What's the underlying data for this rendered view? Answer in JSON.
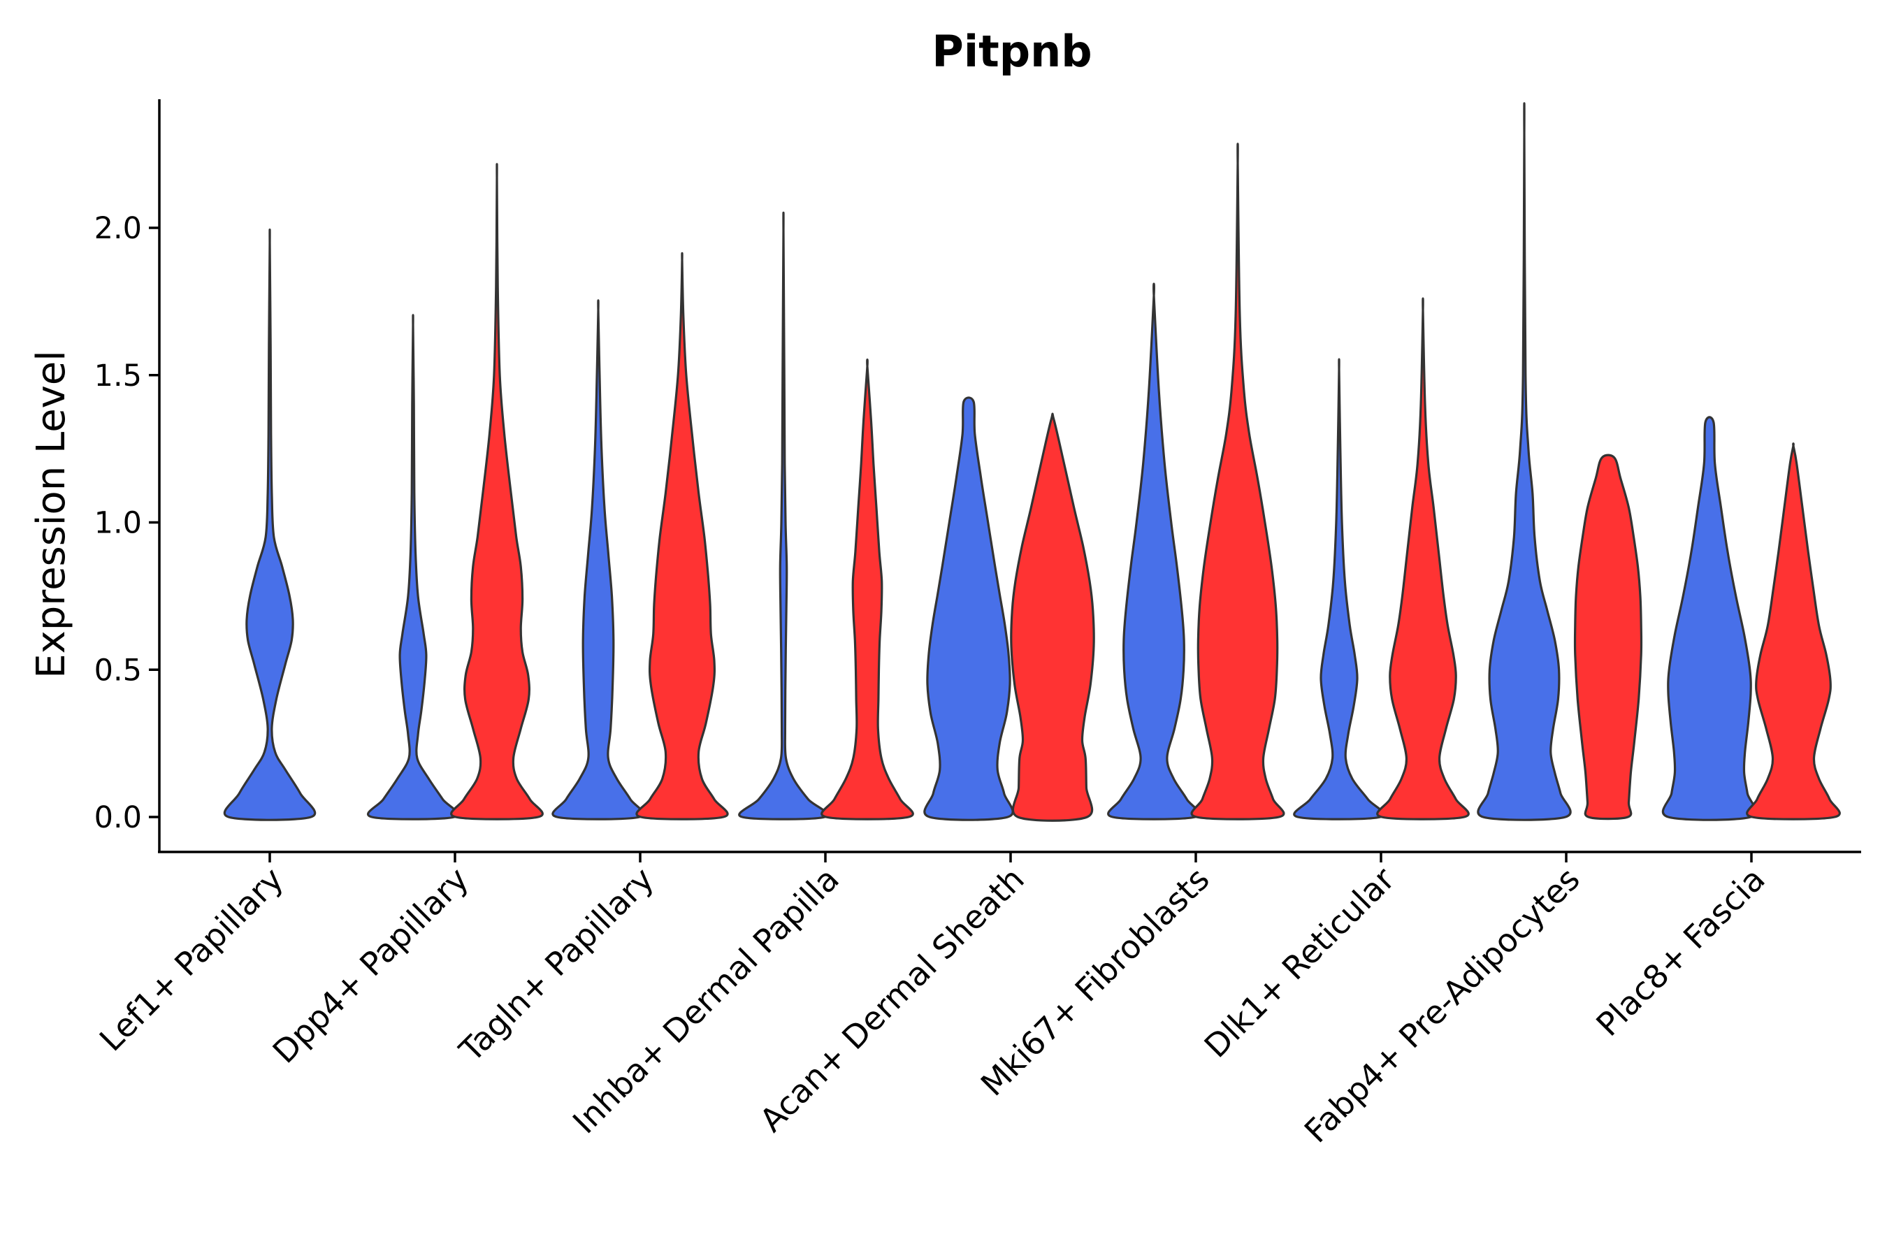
{
  "chart_data": {
    "type": "violin",
    "title": "Pitpnb",
    "xlabel": "",
    "ylabel": "Expression Level",
    "ylim": [
      -0.12,
      2.42
    ],
    "yticks": [
      0.0,
      0.5,
      1.0,
      1.5,
      2.0
    ],
    "ytick_labels": [
      "0.0",
      "0.5",
      "1.0",
      "1.5",
      "2.0"
    ],
    "grid": false,
    "legend": "none",
    "colors": {
      "group_a": "#4870E9",
      "group_b": "#FF3333",
      "outline": "#333333"
    },
    "categories": [
      "Lef1+ Papillary",
      "Dpp4+ Papillary",
      "Tagln+ Papillary",
      "Inhba+ Dermal Papilla",
      "Acan+ Dermal Sheath",
      "Mki67+ Fibroblasts",
      "Dlk1+ Reticular",
      "Fabp4+ Pre-Adipocytes",
      "Plac8+ Fascia"
    ],
    "series": [
      {
        "name": "group_a",
        "color": "#4870E9",
        "max_values": [
          1.95,
          1.67,
          1.72,
          1.99,
          1.41,
          1.77,
          1.52,
          2.32,
          1.34
        ],
        "profiles": [
          [
            [
              0,
              1.0
            ],
            [
              0.08,
              0.74
            ],
            [
              0.16,
              0.38
            ],
            [
              0.22,
              0.13
            ],
            [
              0.3,
              0.05
            ],
            [
              0.4,
              0.16
            ],
            [
              0.52,
              0.38
            ],
            [
              0.6,
              0.53
            ],
            [
              0.67,
              0.56
            ],
            [
              0.75,
              0.48
            ],
            [
              0.85,
              0.3
            ],
            [
              0.95,
              0.1
            ],
            [
              1.1,
              0.05
            ],
            [
              1.3,
              0.03
            ],
            [
              1.6,
              0.02
            ],
            [
              1.95,
              0.0
            ]
          ],
          [
            [
              0,
              1.0
            ],
            [
              0.06,
              0.72
            ],
            [
              0.13,
              0.38
            ],
            [
              0.2,
              0.1
            ],
            [
              0.28,
              0.12
            ],
            [
              0.36,
              0.2
            ],
            [
              0.46,
              0.28
            ],
            [
              0.55,
              0.32
            ],
            [
              0.62,
              0.26
            ],
            [
              0.75,
              0.12
            ],
            [
              0.9,
              0.06
            ],
            [
              1.1,
              0.03
            ],
            [
              1.4,
              0.02
            ],
            [
              1.67,
              0.0
            ]
          ],
          [
            [
              0,
              1.0
            ],
            [
              0.06,
              0.78
            ],
            [
              0.13,
              0.45
            ],
            [
              0.2,
              0.24
            ],
            [
              0.3,
              0.3
            ],
            [
              0.45,
              0.35
            ],
            [
              0.6,
              0.37
            ],
            [
              0.75,
              0.33
            ],
            [
              0.9,
              0.24
            ],
            [
              1.05,
              0.15
            ],
            [
              1.25,
              0.08
            ],
            [
              1.45,
              0.04
            ],
            [
              1.72,
              0.0
            ]
          ],
          [
            [
              0,
              1.0
            ],
            [
              0.06,
              0.6
            ],
            [
              0.13,
              0.24
            ],
            [
              0.2,
              0.06
            ],
            [
              0.3,
              0.04
            ],
            [
              0.5,
              0.05
            ],
            [
              0.7,
              0.07
            ],
            [
              0.85,
              0.08
            ],
            [
              1.0,
              0.05
            ],
            [
              1.2,
              0.03
            ],
            [
              1.5,
              0.02
            ],
            [
              1.99,
              0.0
            ]
          ],
          [
            [
              0,
              0.95
            ],
            [
              0.08,
              0.86
            ],
            [
              0.16,
              0.7
            ],
            [
              0.25,
              0.75
            ],
            [
              0.35,
              0.92
            ],
            [
              0.45,
              1.0
            ],
            [
              0.55,
              0.97
            ],
            [
              0.65,
              0.88
            ],
            [
              0.75,
              0.76
            ],
            [
              0.85,
              0.64
            ],
            [
              1.0,
              0.47
            ],
            [
              1.15,
              0.3
            ],
            [
              1.3,
              0.15
            ],
            [
              1.41,
              0.12
            ]
          ],
          [
            [
              0,
              1.0
            ],
            [
              0.06,
              0.8
            ],
            [
              0.13,
              0.48
            ],
            [
              0.2,
              0.32
            ],
            [
              0.3,
              0.5
            ],
            [
              0.4,
              0.65
            ],
            [
              0.5,
              0.72
            ],
            [
              0.6,
              0.73
            ],
            [
              0.7,
              0.68
            ],
            [
              0.85,
              0.56
            ],
            [
              1.0,
              0.42
            ],
            [
              1.2,
              0.26
            ],
            [
              1.45,
              0.12
            ],
            [
              1.77,
              0.0
            ]
          ],
          [
            [
              0,
              1.0
            ],
            [
              0.06,
              0.7
            ],
            [
              0.13,
              0.32
            ],
            [
              0.2,
              0.16
            ],
            [
              0.28,
              0.22
            ],
            [
              0.38,
              0.36
            ],
            [
              0.47,
              0.44
            ],
            [
              0.55,
              0.38
            ],
            [
              0.65,
              0.26
            ],
            [
              0.8,
              0.14
            ],
            [
              1.0,
              0.07
            ],
            [
              1.25,
              0.03
            ],
            [
              1.52,
              0.0
            ]
          ],
          [
            [
              0,
              1.0
            ],
            [
              0.08,
              0.88
            ],
            [
              0.15,
              0.74
            ],
            [
              0.22,
              0.64
            ],
            [
              0.3,
              0.7
            ],
            [
              0.4,
              0.82
            ],
            [
              0.5,
              0.84
            ],
            [
              0.6,
              0.74
            ],
            [
              0.7,
              0.56
            ],
            [
              0.8,
              0.38
            ],
            [
              0.95,
              0.25
            ],
            [
              1.1,
              0.2
            ],
            [
              1.25,
              0.1
            ],
            [
              1.5,
              0.03
            ],
            [
              2.32,
              0.0
            ]
          ],
          [
            [
              0,
              1.0
            ],
            [
              0.08,
              0.92
            ],
            [
              0.15,
              0.84
            ],
            [
              0.22,
              0.86
            ],
            [
              0.32,
              0.94
            ],
            [
              0.42,
              1.0
            ],
            [
              0.5,
              0.98
            ],
            [
              0.62,
              0.84
            ],
            [
              0.75,
              0.64
            ],
            [
              0.9,
              0.44
            ],
            [
              1.05,
              0.28
            ],
            [
              1.2,
              0.13
            ],
            [
              1.34,
              0.1
            ]
          ]
        ]
      },
      {
        "name": "group_b",
        "color": "#FF3333",
        "max_values": [
          2.17,
          1.89,
          1.53,
          1.35,
          2.22,
          1.72,
          1.22,
          1.26
        ],
        "profiles": [
          [
            [
              0,
              1.0
            ],
            [
              0.06,
              0.8
            ],
            [
              0.13,
              0.48
            ],
            [
              0.2,
              0.4
            ],
            [
              0.3,
              0.58
            ],
            [
              0.4,
              0.77
            ],
            [
              0.48,
              0.76
            ],
            [
              0.56,
              0.62
            ],
            [
              0.64,
              0.58
            ],
            [
              0.74,
              0.62
            ],
            [
              0.85,
              0.58
            ],
            [
              0.95,
              0.47
            ],
            [
              1.1,
              0.34
            ],
            [
              1.3,
              0.18
            ],
            [
              1.5,
              0.07
            ],
            [
              1.8,
              0.02
            ],
            [
              2.17,
              0.0
            ]
          ],
          [
            [
              0,
              1.0
            ],
            [
              0.06,
              0.78
            ],
            [
              0.13,
              0.48
            ],
            [
              0.22,
              0.4
            ],
            [
              0.32,
              0.58
            ],
            [
              0.45,
              0.76
            ],
            [
              0.53,
              0.78
            ],
            [
              0.62,
              0.7
            ],
            [
              0.72,
              0.68
            ],
            [
              0.82,
              0.63
            ],
            [
              0.95,
              0.54
            ],
            [
              1.1,
              0.4
            ],
            [
              1.3,
              0.24
            ],
            [
              1.5,
              0.1
            ],
            [
              1.7,
              0.03
            ],
            [
              1.89,
              0.0
            ]
          ],
          [
            [
              0,
              1.0
            ],
            [
              0.06,
              0.8
            ],
            [
              0.13,
              0.52
            ],
            [
              0.2,
              0.34
            ],
            [
              0.3,
              0.26
            ],
            [
              0.4,
              0.27
            ],
            [
              0.5,
              0.28
            ],
            [
              0.6,
              0.3
            ],
            [
              0.7,
              0.34
            ],
            [
              0.8,
              0.35
            ],
            [
              0.9,
              0.29
            ],
            [
              1.05,
              0.22
            ],
            [
              1.2,
              0.15
            ],
            [
              1.35,
              0.09
            ],
            [
              1.53,
              0.0
            ]
          ],
          [
            [
              0,
              0.84
            ],
            [
              0.1,
              0.82
            ],
            [
              0.2,
              0.8
            ],
            [
              0.26,
              0.72
            ],
            [
              0.34,
              0.78
            ],
            [
              0.45,
              0.92
            ],
            [
              0.58,
              1.0
            ],
            [
              0.7,
              0.98
            ],
            [
              0.8,
              0.9
            ],
            [
              0.92,
              0.74
            ],
            [
              1.05,
              0.52
            ],
            [
              1.2,
              0.28
            ],
            [
              1.35,
              0.03
            ]
          ],
          [
            [
              0,
              1.0
            ],
            [
              0.06,
              0.86
            ],
            [
              0.13,
              0.68
            ],
            [
              0.2,
              0.62
            ],
            [
              0.3,
              0.76
            ],
            [
              0.4,
              0.9
            ],
            [
              0.5,
              0.95
            ],
            [
              0.6,
              0.96
            ],
            [
              0.72,
              0.92
            ],
            [
              0.85,
              0.82
            ],
            [
              1.0,
              0.66
            ],
            [
              1.15,
              0.48
            ],
            [
              1.3,
              0.28
            ],
            [
              1.45,
              0.15
            ],
            [
              1.7,
              0.05
            ],
            [
              2.22,
              0.0
            ]
          ],
          [
            [
              0,
              1.0
            ],
            [
              0.06,
              0.8
            ],
            [
              0.13,
              0.52
            ],
            [
              0.2,
              0.4
            ],
            [
              0.3,
              0.56
            ],
            [
              0.4,
              0.75
            ],
            [
              0.48,
              0.8
            ],
            [
              0.55,
              0.74
            ],
            [
              0.65,
              0.6
            ],
            [
              0.75,
              0.5
            ],
            [
              0.9,
              0.38
            ],
            [
              1.05,
              0.26
            ],
            [
              1.2,
              0.13
            ],
            [
              1.4,
              0.05
            ],
            [
              1.72,
              0.0
            ]
          ],
          [
            [
              0,
              0.48
            ],
            [
              0.05,
              0.5
            ],
            [
              0.15,
              0.55
            ],
            [
              0.25,
              0.63
            ],
            [
              0.4,
              0.74
            ],
            [
              0.55,
              0.8
            ],
            [
              0.65,
              0.8
            ],
            [
              0.75,
              0.78
            ],
            [
              0.85,
              0.72
            ],
            [
              0.95,
              0.62
            ],
            [
              1.05,
              0.5
            ],
            [
              1.15,
              0.3
            ],
            [
              1.22,
              0.15
            ]
          ],
          [
            [
              0,
              1.0
            ],
            [
              0.06,
              0.88
            ],
            [
              0.13,
              0.62
            ],
            [
              0.2,
              0.5
            ],
            [
              0.3,
              0.66
            ],
            [
              0.4,
              0.86
            ],
            [
              0.46,
              0.9
            ],
            [
              0.55,
              0.8
            ],
            [
              0.65,
              0.62
            ],
            [
              0.78,
              0.48
            ],
            [
              0.9,
              0.36
            ],
            [
              1.05,
              0.22
            ],
            [
              1.2,
              0.08
            ],
            [
              1.26,
              0.0
            ]
          ]
        ]
      }
    ],
    "violin_slots": [
      [
        "group_a"
      ],
      [
        "group_a",
        "group_b"
      ],
      [
        "group_a",
        "group_b"
      ],
      [
        "group_a",
        "group_b"
      ],
      [
        "group_a",
        "group_b"
      ],
      [
        "group_a",
        "group_b"
      ],
      [
        "group_a",
        "group_b"
      ],
      [
        "group_a",
        "group_b"
      ],
      [
        "group_a",
        "group_b"
      ]
    ]
  }
}
